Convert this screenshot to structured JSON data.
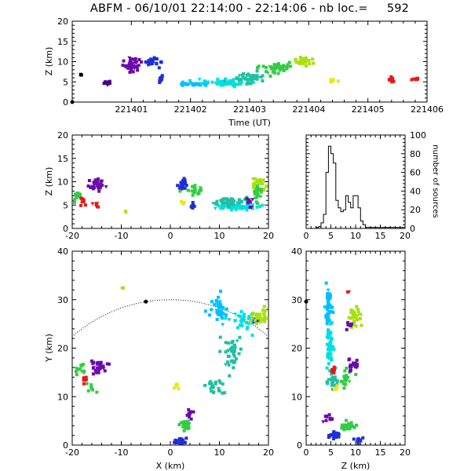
{
  "title": "ABFM - 06/10/01 22:14:00 - 22:14:06 - nb loc.=     592",
  "chart_data": [
    {
      "type": "scatter",
      "panel": "time-height",
      "xlabel": "Time (UT)",
      "ylabel": "Z (km)",
      "xlim": [
        221400,
        221406
      ],
      "ylim": [
        0,
        20
      ],
      "xticks": [
        "221401",
        "221402",
        "221403",
        "221404",
        "221405",
        "221406"
      ],
      "yticks": [
        "0",
        "5",
        "10",
        "15",
        "20"
      ],
      "clusters": [
        {
          "color": "#000000",
          "x": 221400.15,
          "y": 6.7,
          "dx": 0.03,
          "dy": 0.3,
          "n": 3
        },
        {
          "color": "#4b0082",
          "x": 221400.6,
          "y": 4.8,
          "dx": 0.06,
          "dy": 0.7,
          "n": 12
        },
        {
          "color": "#6a0dad",
          "x": 221401.0,
          "y": 9.3,
          "dx": 0.18,
          "dy": 1.6,
          "n": 40
        },
        {
          "color": "#1f2fd6",
          "x": 221401.35,
          "y": 9.8,
          "dx": 0.12,
          "dy": 1.2,
          "n": 26
        },
        {
          "color": "#1f2fd6",
          "x": 221401.5,
          "y": 5.8,
          "dx": 0.05,
          "dy": 0.8,
          "n": 10
        },
        {
          "color": "#00bfff",
          "x": 221402.1,
          "y": 4.4,
          "dx": 0.3,
          "dy": 0.4,
          "n": 30
        },
        {
          "color": "#00e0e0",
          "x": 221402.6,
          "y": 4.8,
          "dx": 0.35,
          "dy": 0.8,
          "n": 55
        },
        {
          "color": "#20c0a0",
          "x": 221403.0,
          "y": 6.0,
          "dx": 0.25,
          "dy": 1.2,
          "n": 40
        },
        {
          "color": "#33cc44",
          "x": 221403.4,
          "y": 8.5,
          "dx": 0.25,
          "dy": 1.6,
          "n": 45
        },
        {
          "color": "#a8e010",
          "x": 221403.9,
          "y": 9.8,
          "dx": 0.2,
          "dy": 1.3,
          "n": 28
        },
        {
          "color": "#e8e820",
          "x": 221404.4,
          "y": 5.3,
          "dx": 0.06,
          "dy": 0.5,
          "n": 8
        },
        {
          "color": "#e81818",
          "x": 221405.4,
          "y": 5.5,
          "dx": 0.05,
          "dy": 0.7,
          "n": 8
        },
        {
          "color": "#e81818",
          "x": 221405.75,
          "y": 5.7,
          "dx": 0.12,
          "dy": 0.4,
          "n": 8
        }
      ]
    },
    {
      "type": "scatter",
      "panel": "x-height",
      "xlabel": "",
      "ylabel": "Z (km)",
      "xlim": [
        -20,
        20
      ],
      "ylim": [
        0,
        20
      ],
      "xticks": [
        "-20",
        "-10",
        "0",
        "10",
        "20"
      ],
      "yticks": [
        "0",
        "5",
        "10",
        "15",
        "20"
      ],
      "clusters": [
        {
          "color": "#33cc44",
          "x": -19,
          "y": 7,
          "dx": 1,
          "dy": 1,
          "n": 14
        },
        {
          "color": "#e81818",
          "x": -18,
          "y": 5.8,
          "dx": 0.8,
          "dy": 0.6,
          "n": 8
        },
        {
          "color": "#6a0dad",
          "x": -15,
          "y": 9.4,
          "dx": 1.6,
          "dy": 1.3,
          "n": 35
        },
        {
          "color": "#e81818",
          "x": -15,
          "y": 5,
          "dx": 0.6,
          "dy": 0.6,
          "n": 6
        },
        {
          "color": "#a8e010",
          "x": -9,
          "y": 3.5,
          "dx": 0.3,
          "dy": 0.3,
          "n": 2
        },
        {
          "color": "#1f2fd6",
          "x": 2.5,
          "y": 9.5,
          "dx": 1,
          "dy": 1,
          "n": 24
        },
        {
          "color": "#33cc44",
          "x": 5,
          "y": 8.5,
          "dx": 1.5,
          "dy": 1.2,
          "n": 22
        },
        {
          "color": "#e8e820",
          "x": 2.5,
          "y": 5.5,
          "dx": 0.5,
          "dy": 0.5,
          "n": 6
        },
        {
          "color": "#1f2fd6",
          "x": 4.5,
          "y": 4.6,
          "dx": 0.7,
          "dy": 0.6,
          "n": 10
        },
        {
          "color": "#00e0e0",
          "x": 13,
          "y": 4.6,
          "dx": 4.5,
          "dy": 0.6,
          "n": 70
        },
        {
          "color": "#20c0a0",
          "x": 12,
          "y": 5.8,
          "dx": 4,
          "dy": 0.9,
          "n": 50
        },
        {
          "color": "#a8e010",
          "x": 18,
          "y": 10,
          "dx": 1.5,
          "dy": 1.3,
          "n": 24
        },
        {
          "color": "#33cc44",
          "x": 18,
          "y": 7.5,
          "dx": 1.5,
          "dy": 1.5,
          "n": 20
        },
        {
          "color": "#6a0dad",
          "x": 16,
          "y": 5.5,
          "dx": 1,
          "dy": 1,
          "n": 10
        },
        {
          "color": "#000000",
          "x": -5,
          "y": 0,
          "dx": 0.1,
          "dy": 0.05,
          "n": 1
        }
      ]
    },
    {
      "type": "line",
      "panel": "height-histogram",
      "xlabel": "",
      "ylabel": "number of sources",
      "xlim": [
        0,
        20
      ],
      "ylim": [
        0,
        100
      ],
      "xticks": [
        "0",
        "5",
        "10",
        "15",
        "20"
      ],
      "yticks": [
        "0",
        "20",
        "40",
        "60",
        "80",
        "100"
      ],
      "bin_edges": [
        0,
        0.5,
        1,
        1.5,
        2,
        2.5,
        3,
        3.5,
        4,
        4.5,
        5,
        5.5,
        6,
        6.5,
        7,
        7.5,
        8,
        8.5,
        9,
        9.5,
        10,
        10.5,
        11,
        11.5,
        12,
        12.5,
        13,
        13.5,
        14,
        14.5,
        15,
        15.5,
        16,
        16.5,
        17,
        17.5,
        18,
        18.5,
        19,
        19.5,
        20
      ],
      "counts": [
        0,
        0,
        0,
        0,
        1,
        2,
        6,
        15,
        60,
        88,
        80,
        70,
        30,
        22,
        18,
        20,
        35,
        28,
        22,
        35,
        35,
        22,
        8,
        4,
        1,
        1,
        1,
        1,
        1,
        1,
        1,
        1,
        1,
        1,
        1,
        1,
        1,
        1,
        1,
        1
      ]
    },
    {
      "type": "scatter",
      "panel": "plan-view",
      "xlabel": "X (km)",
      "ylabel": "Y (km)",
      "xlim": [
        -20,
        20
      ],
      "ylim": [
        0,
        40
      ],
      "xticks": [
        "-20",
        "-10",
        "0",
        "10",
        "20"
      ],
      "yticks": [
        "0",
        "10",
        "20",
        "30",
        "40"
      ],
      "range_circle_center": [
        0,
        0
      ],
      "range_circle_radius": 30,
      "station": [
        -5,
        29.6
      ],
      "clusters": [
        {
          "color": "#6a0dad",
          "x": -14.5,
          "y": 16,
          "dx": 1.8,
          "dy": 1.4,
          "n": 35
        },
        {
          "color": "#33cc44",
          "x": -18.5,
          "y": 15.5,
          "dx": 1.2,
          "dy": 1.2,
          "n": 14
        },
        {
          "color": "#e81818",
          "x": -17.5,
          "y": 13.5,
          "dx": 0.7,
          "dy": 0.7,
          "n": 7
        },
        {
          "color": "#33cc44",
          "x": -16,
          "y": 12,
          "dx": 1,
          "dy": 1,
          "n": 8
        },
        {
          "color": "#a8e010",
          "x": -9.5,
          "y": 32.5,
          "dx": 0.3,
          "dy": 0.3,
          "n": 2
        },
        {
          "color": "#e8e820",
          "x": 1,
          "y": 12,
          "dx": 0.6,
          "dy": 0.8,
          "n": 6
        },
        {
          "color": "#6a0dad",
          "x": 4,
          "y": 6.5,
          "dx": 0.6,
          "dy": 1,
          "n": 12
        },
        {
          "color": "#33cc44",
          "x": 3,
          "y": 4,
          "dx": 1,
          "dy": 1.2,
          "n": 24
        },
        {
          "color": "#1f2fd6",
          "x": 2,
          "y": 0.8,
          "dx": 1.5,
          "dy": 0.6,
          "n": 28
        },
        {
          "color": "#20c0a0",
          "x": 9,
          "y": 12,
          "dx": 2,
          "dy": 1.5,
          "n": 25
        },
        {
          "color": "#20c0a0",
          "x": 12.5,
          "y": 19,
          "dx": 2,
          "dy": 3,
          "n": 40
        },
        {
          "color": "#00bfff",
          "x": 10,
          "y": 28,
          "dx": 2,
          "dy": 3,
          "n": 40
        },
        {
          "color": "#00e0e0",
          "x": 15,
          "y": 26,
          "dx": 2,
          "dy": 2,
          "n": 30
        },
        {
          "color": "#1f2fd6",
          "x": 17.5,
          "y": 25.5,
          "dx": 0.6,
          "dy": 0.6,
          "n": 6
        },
        {
          "color": "#a8e010",
          "x": 18.5,
          "y": 26.5,
          "dx": 1.5,
          "dy": 1.8,
          "n": 30
        }
      ]
    },
    {
      "type": "scatter",
      "panel": "height-y",
      "xlabel": "Z (km)",
      "ylabel": "",
      "xlim": [
        0,
        20
      ],
      "ylim": [
        0,
        40
      ],
      "xticks": [
        "0",
        "5",
        "10",
        "15",
        "20"
      ],
      "yticks": [
        "0",
        "10",
        "20",
        "30",
        "40"
      ],
      "station": [
        0,
        29.6
      ],
      "clusters": [
        {
          "color": "#00bfff",
          "x": 4.5,
          "y": 28,
          "dx": 0.7,
          "dy": 4,
          "n": 45
        },
        {
          "color": "#00e0e0",
          "x": 4.8,
          "y": 20,
          "dx": 0.7,
          "dy": 4,
          "n": 50
        },
        {
          "color": "#20c0a0",
          "x": 5.5,
          "y": 13,
          "dx": 1,
          "dy": 2,
          "n": 25
        },
        {
          "color": "#a8e010",
          "x": 10,
          "y": 26,
          "dx": 1.2,
          "dy": 2,
          "n": 28
        },
        {
          "color": "#33cc44",
          "x": 8,
          "y": 14,
          "dx": 1.2,
          "dy": 2,
          "n": 20
        },
        {
          "color": "#6a0dad",
          "x": 9.5,
          "y": 16.5,
          "dx": 1,
          "dy": 1,
          "n": 24
        },
        {
          "color": "#e81818",
          "x": 5.5,
          "y": 15.5,
          "dx": 0.4,
          "dy": 1.2,
          "n": 8
        },
        {
          "color": "#e8e820",
          "x": 6,
          "y": 11.8,
          "dx": 0.5,
          "dy": 0.5,
          "n": 8
        },
        {
          "color": "#6a0dad",
          "x": 4.5,
          "y": 5.5,
          "dx": 0.8,
          "dy": 1.2,
          "n": 10
        },
        {
          "color": "#1f2fd6",
          "x": 5.5,
          "y": 2,
          "dx": 1.2,
          "dy": 1.2,
          "n": 18
        },
        {
          "color": "#33cc44",
          "x": 8.5,
          "y": 4,
          "dx": 1.5,
          "dy": 1.3,
          "n": 24
        },
        {
          "color": "#1f2fd6",
          "x": 10.5,
          "y": 1,
          "dx": 0.8,
          "dy": 0.6,
          "n": 10
        },
        {
          "color": "#6a0dad",
          "x": 8.5,
          "y": 24.5,
          "dx": 0.7,
          "dy": 0.8,
          "n": 8
        },
        {
          "color": "#e81818",
          "x": 8.5,
          "y": 31.5,
          "dx": 0.3,
          "dy": 0.3,
          "n": 2
        }
      ]
    }
  ]
}
